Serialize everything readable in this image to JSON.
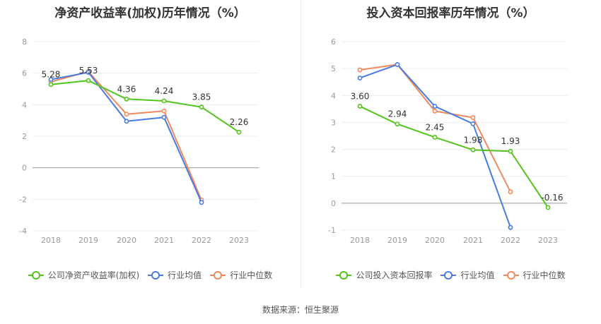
{
  "source_label": "数据来源：恒生聚源",
  "chart_data": [
    {
      "type": "line",
      "title": "净资产收益率(加权)历年情况（%）",
      "categories": [
        "2018",
        "2019",
        "2020",
        "2021",
        "2022",
        "2023"
      ],
      "ylim": [
        -4,
        8
      ],
      "yticks": [
        -4,
        -2,
        0,
        2,
        4,
        6,
        8
      ],
      "grid": true,
      "legend_position": "bottom",
      "series": [
        {
          "name": "公司净资产收益率(加权)",
          "color": "#52c41a",
          "values": [
            5.28,
            5.53,
            4.36,
            4.24,
            3.85,
            2.26
          ],
          "labels": [
            "5.28",
            "5.53",
            "4.36",
            "4.24",
            "3.85",
            "2.26"
          ]
        },
        {
          "name": "行业均值",
          "color": "#4a7be0",
          "values": [
            5.6,
            6.05,
            2.95,
            3.2,
            -2.2,
            null
          ]
        },
        {
          "name": "行业中位数",
          "color": "#f08a5d",
          "values": [
            5.45,
            6.1,
            3.4,
            3.6,
            -2.05,
            null
          ]
        }
      ]
    },
    {
      "type": "line",
      "title": "投入资本回报率历年情况（%）",
      "categories": [
        "2018",
        "2019",
        "2020",
        "2021",
        "2022",
        "2023"
      ],
      "ylim": [
        -1,
        6
      ],
      "yticks": [
        -1,
        0,
        1,
        2,
        3,
        4,
        5,
        6
      ],
      "grid": true,
      "legend_position": "bottom",
      "series": [
        {
          "name": "公司投入资本回报率",
          "color": "#52c41a",
          "values": [
            3.6,
            2.94,
            2.45,
            1.98,
            1.93,
            -0.16
          ],
          "labels": [
            "3.60",
            "2.94",
            "2.45",
            "1.98",
            "1.93",
            "-0.16"
          ]
        },
        {
          "name": "行业均值",
          "color": "#4a7be0",
          "values": [
            4.65,
            5.15,
            3.6,
            2.95,
            -0.9,
            null
          ]
        },
        {
          "name": "行业中位数",
          "color": "#f08a5d",
          "values": [
            4.95,
            5.15,
            3.42,
            3.18,
            0.42,
            null
          ]
        }
      ]
    }
  ]
}
